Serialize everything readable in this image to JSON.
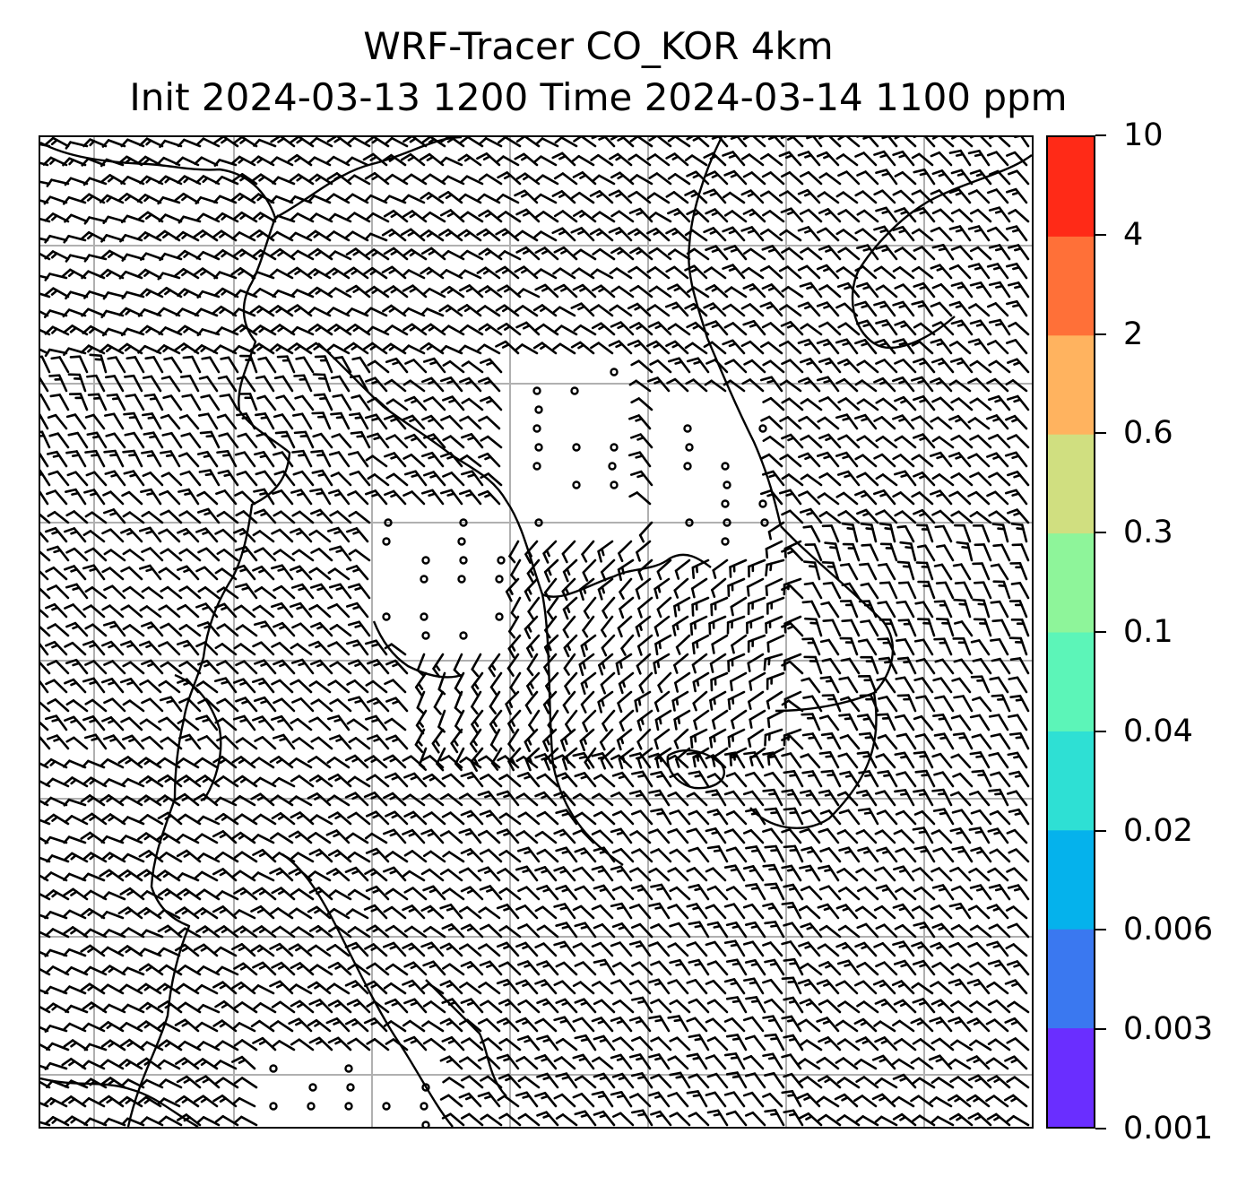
{
  "title": {
    "line1": "WRF-Tracer CO_KOR 4km",
    "line2": "Init 2024-03-13 1200 Time 2024-03-14 1100 ppm"
  },
  "colorbar": {
    "levels": [
      "0.001",
      "0.003",
      "0.006",
      "0.02",
      "0.04",
      "0.1",
      "0.3",
      "0.6",
      "2",
      "4",
      "10"
    ],
    "colors": [
      "#6a2eff",
      "#3a78f0",
      "#05b2ec",
      "#2ee0d4",
      "#5cf5b8",
      "#8ef59a",
      "#d0df80",
      "#ffb35f",
      "#ff7038",
      "#ff2a17"
    ]
  },
  "map": {
    "gridlines": true,
    "coastlines": true,
    "wind_barbs": true,
    "calm_markers": true
  }
}
